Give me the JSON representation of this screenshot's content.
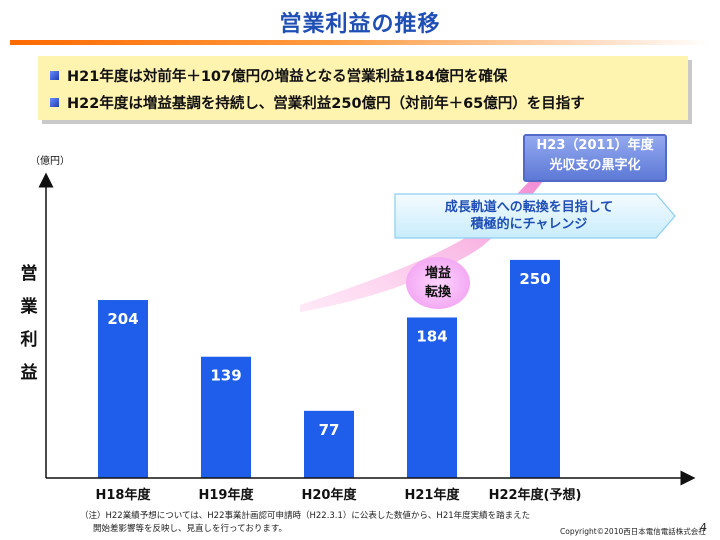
{
  "page": {
    "title": "営業利益の推移",
    "bullets": [
      "H21年度は対前年＋107億円の増益となる営業利益184億円を確保",
      "H22年度は増益基調を持続し、営業利益250億円（対前年＋65億円）を目指す"
    ],
    "callout_h23": [
      "H23（2011）年度",
      "光収支の黒字化"
    ],
    "callout_arrow": [
      "成長軌道への転換を目指して",
      "積極的にチャレンジ"
    ],
    "bubble": [
      "増益",
      "転換"
    ],
    "footnote": [
      "（注）H22業績予想については、H22事業計画認可申請時（H22.3.1）に公表した数値から、H21年度実績を踏まえた",
      "開始差影響等を反映し、見直しを行っております。"
    ],
    "copyright": "Copyright©2010西日本電信電話株式会社",
    "page_number": "4"
  },
  "chart_data": {
    "type": "bar",
    "title": "営業利益の推移",
    "ylabel": "営業利益",
    "unit_label": "（億円）",
    "categories": [
      "H18年度",
      "H19年度",
      "H20年度",
      "H21年度",
      "H22年度(予想)"
    ],
    "values": [
      204,
      139,
      77,
      184,
      250
    ],
    "ylim": [
      0,
      290
    ],
    "grid": false,
    "bar_color": "#1f5eea"
  }
}
